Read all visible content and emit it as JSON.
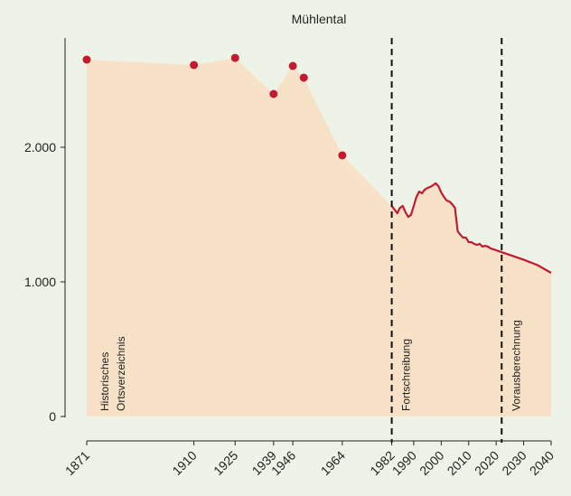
{
  "chart_data": {
    "type": "area-line",
    "title": "Mühlental",
    "background": "#eef3e8",
    "area_color": "#f7e2c8",
    "xlim": [
      1871,
      2040
    ],
    "xticks": [
      1871,
      1910,
      1925,
      1939,
      1946,
      1964,
      1982,
      1990,
      2000,
      2010,
      2020,
      2030,
      2040
    ],
    "ylim": [
      0,
      2800
    ],
    "yticks": [
      0,
      {
        "value": 1000,
        "label": "1.000"
      },
      {
        "value": 2000,
        "label": "2.000"
      }
    ],
    "vlines": [
      1982,
      2022
    ],
    "annotations": [
      {
        "lines": [
          "Historisches",
          "Ortsverzeichnis"
        ]
      },
      {
        "lines": [
          "Fortschreibung"
        ]
      },
      {
        "lines": [
          "Vorausberechnung"
        ]
      }
    ],
    "series": [
      {
        "style": "points",
        "color": "#c41a30",
        "x": [
          1871,
          1910,
          1925,
          1939,
          1946,
          1950,
          1964
        ],
        "values": [
          2651,
          2611,
          2664,
          2396,
          2604,
          2517,
          1940
        ]
      },
      {
        "style": "line",
        "color": "#c41a30",
        "x": [
          1982,
          1983,
          1984,
          1985,
          1986,
          1987,
          1988,
          1989,
          1990,
          1991,
          1992,
          1993,
          1994,
          1995,
          1996,
          1997,
          1998,
          1999,
          2000,
          2001,
          2002,
          2003,
          2004,
          2005,
          2006,
          2007,
          2008,
          2009,
          2010,
          2011,
          2012,
          2013,
          2014,
          2015,
          2016,
          2017,
          2018,
          2019,
          2020,
          2021,
          2022,
          2025,
          2030,
          2035,
          2040
        ],
        "values": [
          1564,
          1537,
          1510,
          1550,
          1564,
          1517,
          1483,
          1497,
          1564,
          1631,
          1671,
          1658,
          1685,
          1698,
          1705,
          1718,
          1732,
          1711,
          1664,
          1631,
          1604,
          1597,
          1577,
          1550,
          1376,
          1349,
          1329,
          1329,
          1295,
          1295,
          1282,
          1275,
          1282,
          1262,
          1268,
          1262,
          1248,
          1242,
          1235,
          1228,
          1221,
          1200,
          1165,
          1125,
          1067
        ]
      }
    ]
  }
}
